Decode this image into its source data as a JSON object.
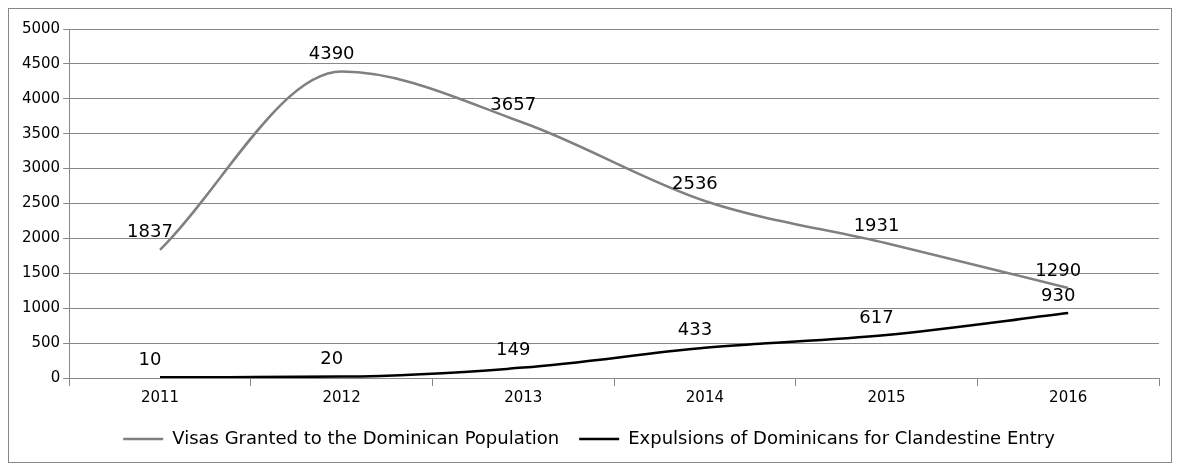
{
  "chart_data": {
    "type": "line",
    "categories": [
      "2011",
      "2012",
      "2013",
      "2014",
      "2015",
      "2016"
    ],
    "series": [
      {
        "name": "Visas Granted to the Dominican Population",
        "color": "#808080",
        "values": [
          1837,
          4390,
          3657,
          2536,
          1931,
          1290
        ]
      },
      {
        "name": "Expulsions of Dominicans for Clandestine Entry",
        "color": "#000000",
        "values": [
          10,
          20,
          149,
          433,
          617,
          930
        ]
      }
    ],
    "ylim": [
      0,
      5000
    ],
    "yticks": [
      0,
      500,
      1000,
      1500,
      2000,
      2500,
      3000,
      3500,
      4000,
      4500,
      5000
    ],
    "grid": "y",
    "legend": "bottom",
    "data_labels": true,
    "marker": "none",
    "line_style": "solid"
  }
}
